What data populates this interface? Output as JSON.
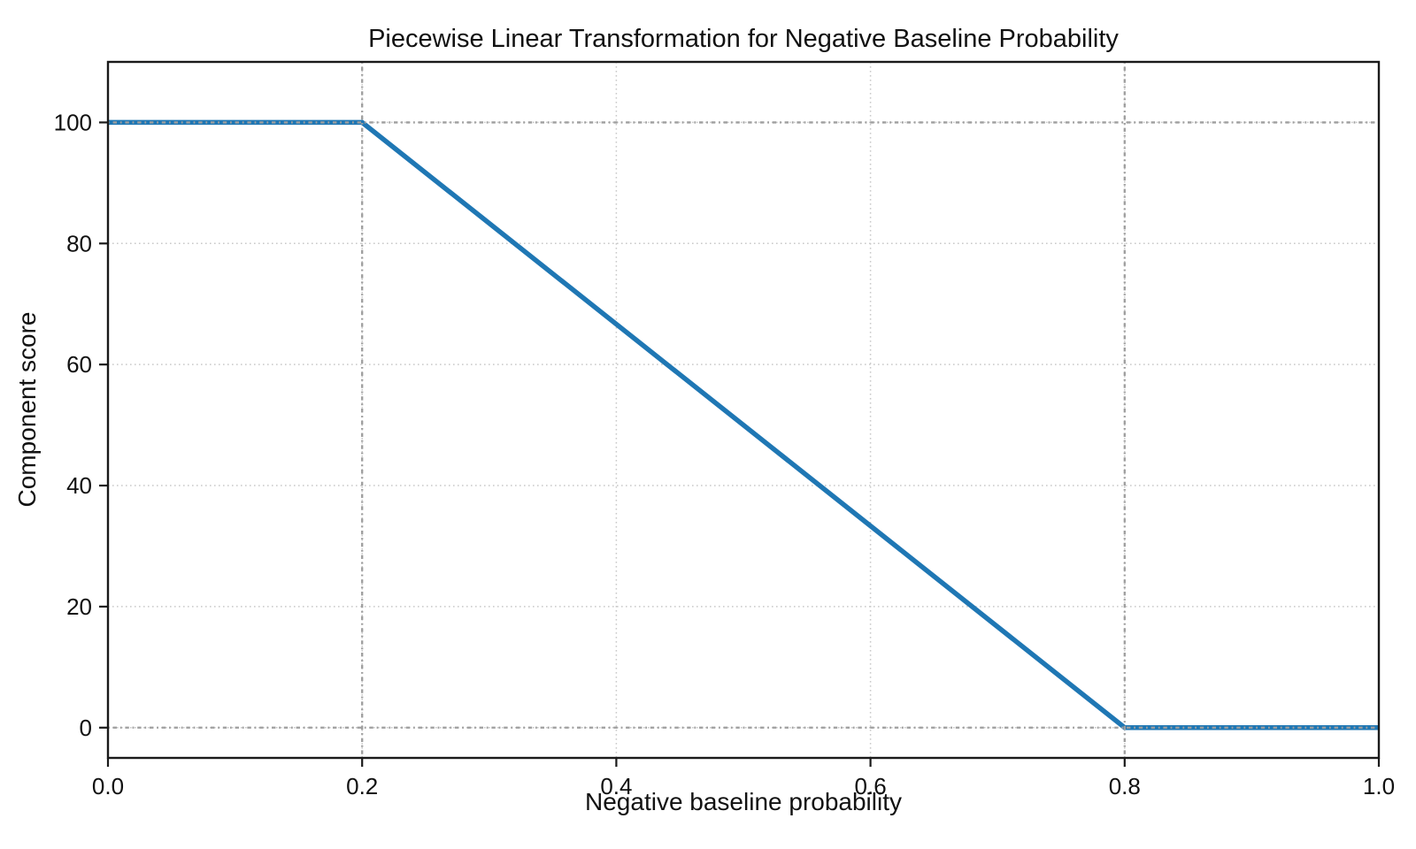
{
  "chart_data": {
    "type": "line",
    "title": "Piecewise Linear Transformation for Negative Baseline Probability",
    "xlabel": "Negative baseline probability",
    "ylabel": "Component score",
    "series": [
      {
        "name": "piecewise-linear-transform",
        "color": "#1f77b4",
        "linewidth": 5.5,
        "points": [
          [
            0.0,
            100
          ],
          [
            0.2,
            100
          ],
          [
            0.8,
            0
          ],
          [
            1.0,
            0
          ]
        ]
      }
    ],
    "xlim": [
      0,
      1
    ],
    "ylim": [
      -5,
      110
    ],
    "x_ticks": [
      0.0,
      0.2,
      0.4,
      0.6,
      0.8,
      1.0
    ],
    "x_tick_labels": [
      "0.0",
      "0.2",
      "0.4",
      "0.6",
      "0.8",
      "1.0"
    ],
    "y_ticks": [
      0,
      20,
      40,
      60,
      80,
      100
    ],
    "y_tick_labels": [
      "0",
      "20",
      "40",
      "60",
      "80",
      "100"
    ],
    "grid": {
      "on": true,
      "color": "#c9c9c9",
      "style": "dotted"
    },
    "reference_lines": {
      "x": [
        0.2,
        0.8
      ],
      "y": [
        0,
        100
      ],
      "color": "#9e9e9e",
      "style": "dash-dot"
    },
    "legend": {
      "visible": false
    },
    "colors": {
      "line": "#1f77b4",
      "spine": "#1a1a1a",
      "text": "#111111",
      "background": "#ffffff"
    }
  }
}
